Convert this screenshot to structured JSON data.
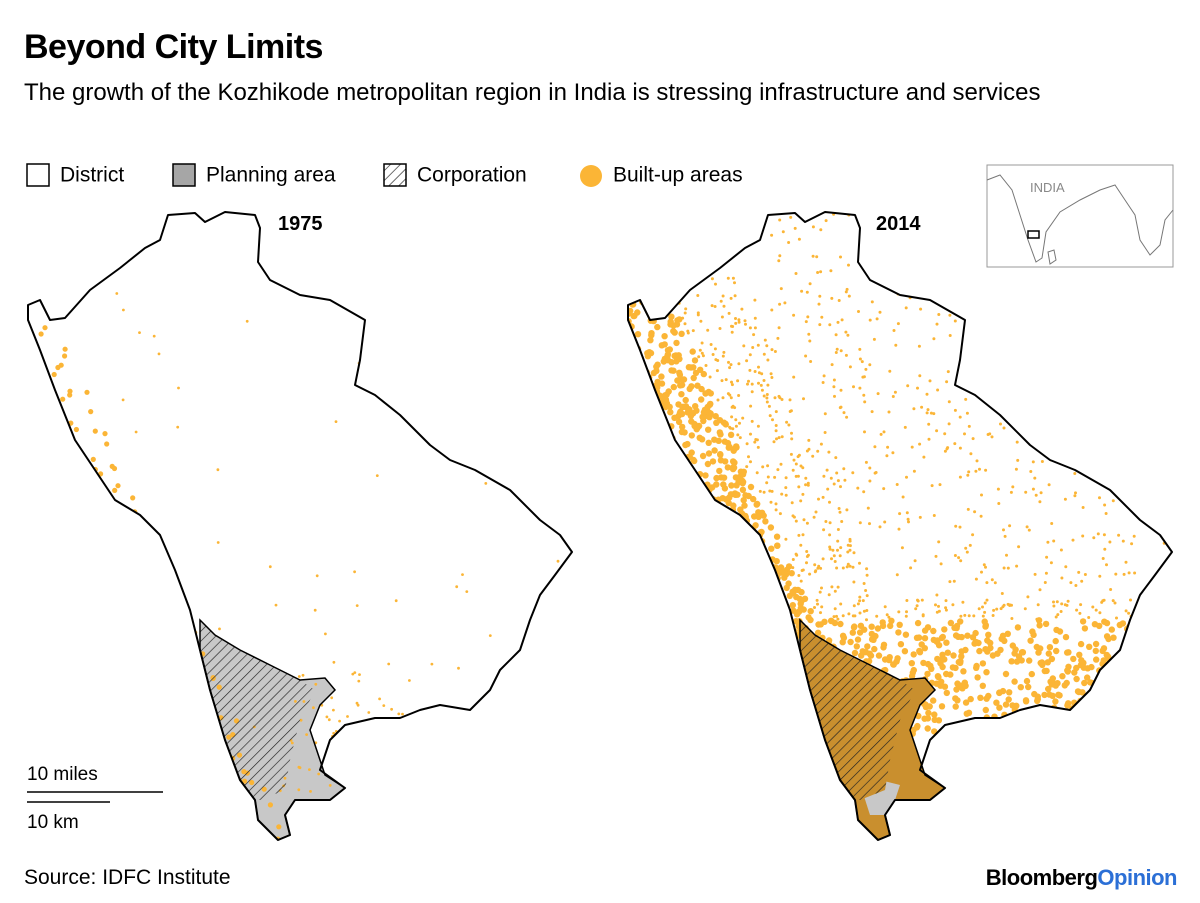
{
  "header": {
    "title": "Beyond City Limits",
    "subtitle": "The growth of the Kozhikode metropolitan region in India is stressing infrastructure and services"
  },
  "legend": {
    "items": [
      "District",
      "Planning area",
      "Corporation",
      "Built-up areas"
    ]
  },
  "maps": [
    {
      "label": "1975"
    },
    {
      "label": "2014"
    }
  ],
  "inset": {
    "label": "INDIA"
  },
  "scale": {
    "miles": "10 miles",
    "km": "10 km"
  },
  "footer": {
    "source": "Source: IDFC Institute",
    "brand": "Bloomberg",
    "brand_suffix": "Opinion"
  }
}
